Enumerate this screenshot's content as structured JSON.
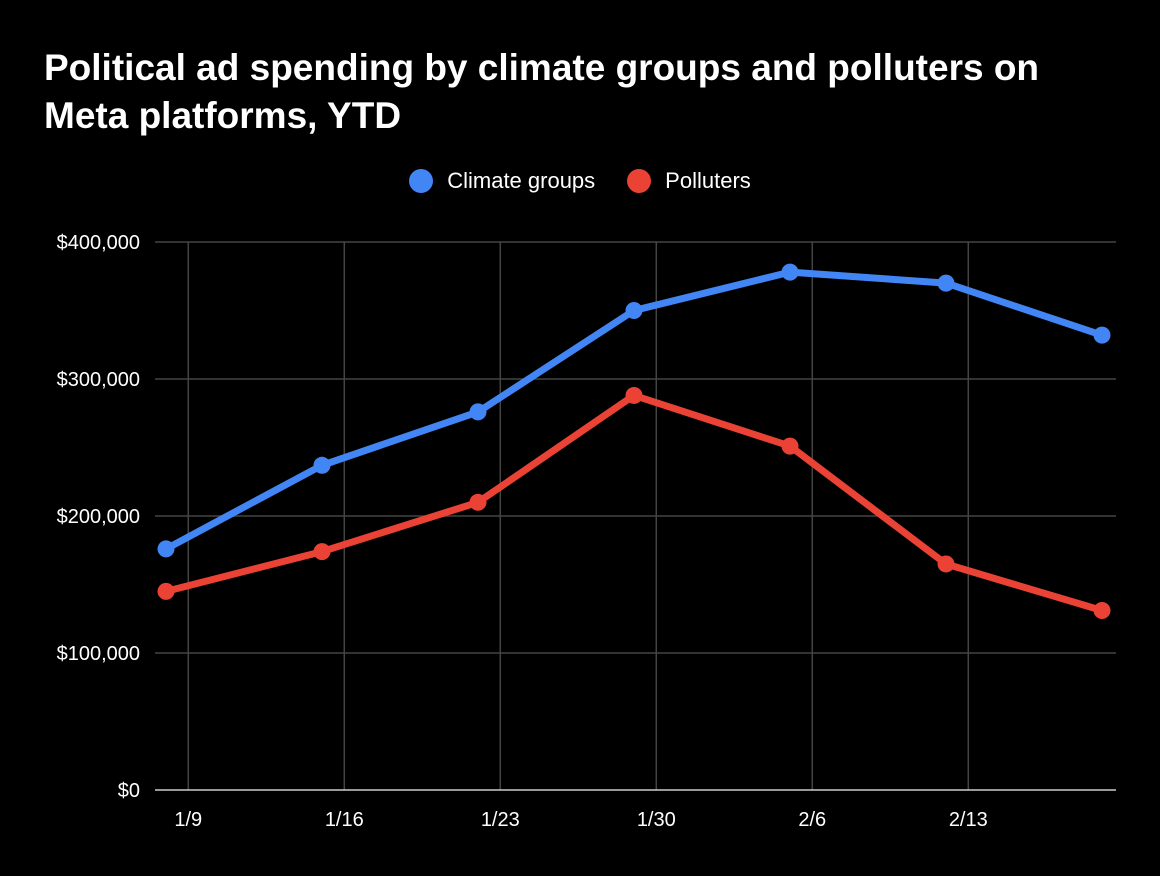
{
  "chart_data": {
    "type": "line",
    "title": "Political ad spending by climate groups and polluters on Meta platforms, YTD",
    "xlabel": "",
    "ylabel": "",
    "x_tick_labels": [
      "1/9",
      "1/16",
      "1/23",
      "1/30",
      "2/6",
      "2/13"
    ],
    "x_tick_dates": [
      "2024-01-09",
      "2024-01-16",
      "2024-01-23",
      "2024-01-30",
      "2024-02-06",
      "2024-02-13"
    ],
    "x_range": [
      "2024-01-08",
      "2024-02-19"
    ],
    "x": [
      "2024-01-08",
      "2024-01-15",
      "2024-01-22",
      "2024-01-29",
      "2024-02-05",
      "2024-02-12",
      "2024-02-19"
    ],
    "y_tick_labels": [
      "$0",
      "$100,000",
      "$200,000",
      "$300,000",
      "$400,000"
    ],
    "y_ticks": [
      0,
      100000,
      200000,
      300000,
      400000
    ],
    "ylim": [
      0,
      400000
    ],
    "grid": true,
    "legend_position": "top-center",
    "series": [
      {
        "name": "Climate groups",
        "color": "#4285f4",
        "values": [
          176000,
          237000,
          276000,
          350000,
          378000,
          370000,
          332000
        ]
      },
      {
        "name": "Polluters",
        "color": "#ea4335",
        "values": [
          145000,
          174000,
          210000,
          288000,
          251000,
          165000,
          131000
        ]
      }
    ]
  }
}
